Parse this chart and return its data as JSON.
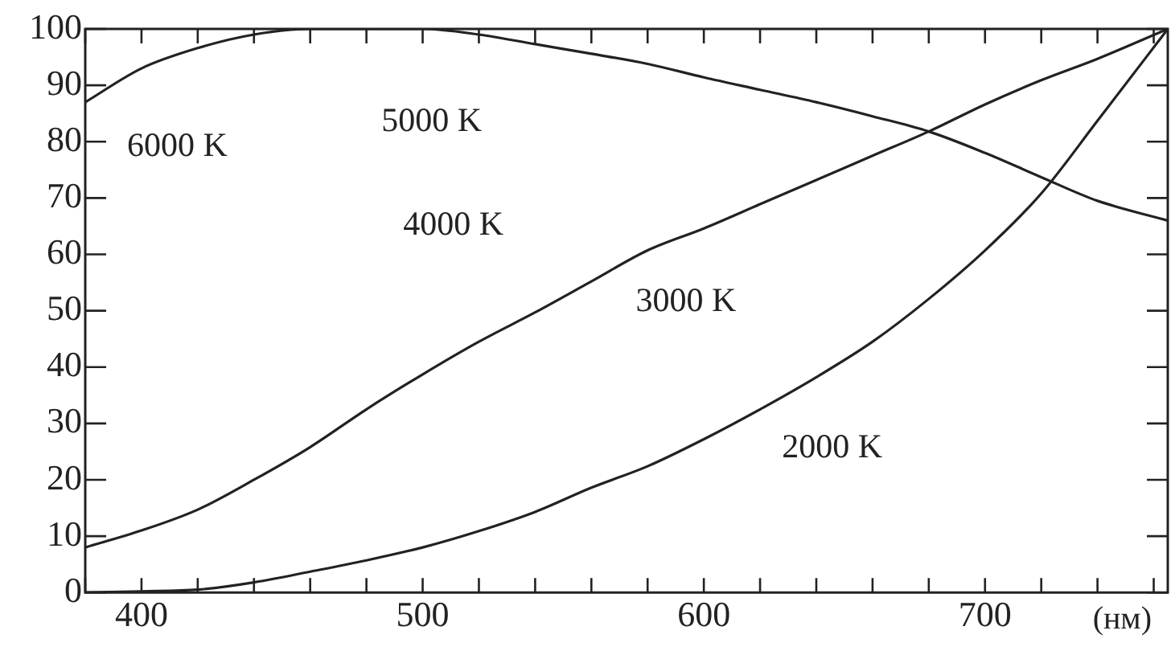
{
  "chart_data": {
    "type": "line",
    "xlabel": "(нм)",
    "x": [
      380,
      400,
      420,
      440,
      460,
      480,
      500,
      520,
      540,
      560,
      580,
      600,
      620,
      640,
      660,
      680,
      700,
      720,
      740,
      765
    ],
    "series": [
      {
        "color": "#222222",
        "values": [
          87,
          93,
          96.6,
          99,
          100,
          100,
          100,
          99,
          97.3,
          95.6,
          93.8,
          91.4,
          89.2,
          87,
          84.5,
          81.8,
          78,
          73.7,
          69.5,
          66
        ]
      },
      {
        "color": "#222222",
        "values": [
          8,
          11,
          14.7,
          20,
          25.8,
          32.5,
          38.7,
          44.5,
          49.7,
          55.2,
          60.7,
          64.6,
          68.9,
          73.2,
          77.5,
          81.8,
          86.6,
          90.9,
          94.7,
          100
        ]
      },
      {
        "color": "#222222",
        "values": [
          0,
          0.2,
          0.5,
          1.8,
          3.7,
          5.7,
          8,
          10.9,
          14.3,
          18.6,
          22.4,
          27.2,
          32.5,
          38.2,
          44.5,
          52.1,
          60.7,
          70.8,
          83.7,
          100
        ]
      }
    ],
    "xlim": [
      380,
      765
    ],
    "ylim": [
      0,
      100
    ],
    "xticks": [
      {
        "value": 380,
        "label": null
      },
      400,
      {
        "value": 420,
        "label": null
      },
      {
        "value": 440,
        "label": null
      },
      {
        "value": 460,
        "label": null
      },
      {
        "value": 480,
        "label": null
      },
      500,
      {
        "value": 520,
        "label": null
      },
      {
        "value": 540,
        "label": null
      },
      {
        "value": 560,
        "label": null
      },
      {
        "value": 580,
        "label": null
      },
      600,
      {
        "value": 620,
        "label": null
      },
      {
        "value": 640,
        "label": null
      },
      {
        "value": 660,
        "label": null
      },
      {
        "value": 680,
        "label": null
      },
      700,
      {
        "value": 720,
        "label": null
      },
      {
        "value": 740,
        "label": null
      },
      {
        "value": 760,
        "label": null
      }
    ],
    "yticks": [
      0,
      10,
      20,
      30,
      40,
      50,
      60,
      70,
      80,
      90,
      100
    ],
    "marker": "none",
    "line_style": "solid",
    "grid": false,
    "legend": false,
    "annotations": [
      "6000 K",
      "5000 K",
      "4000 K",
      "3000 K",
      "2000 K"
    ]
  }
}
